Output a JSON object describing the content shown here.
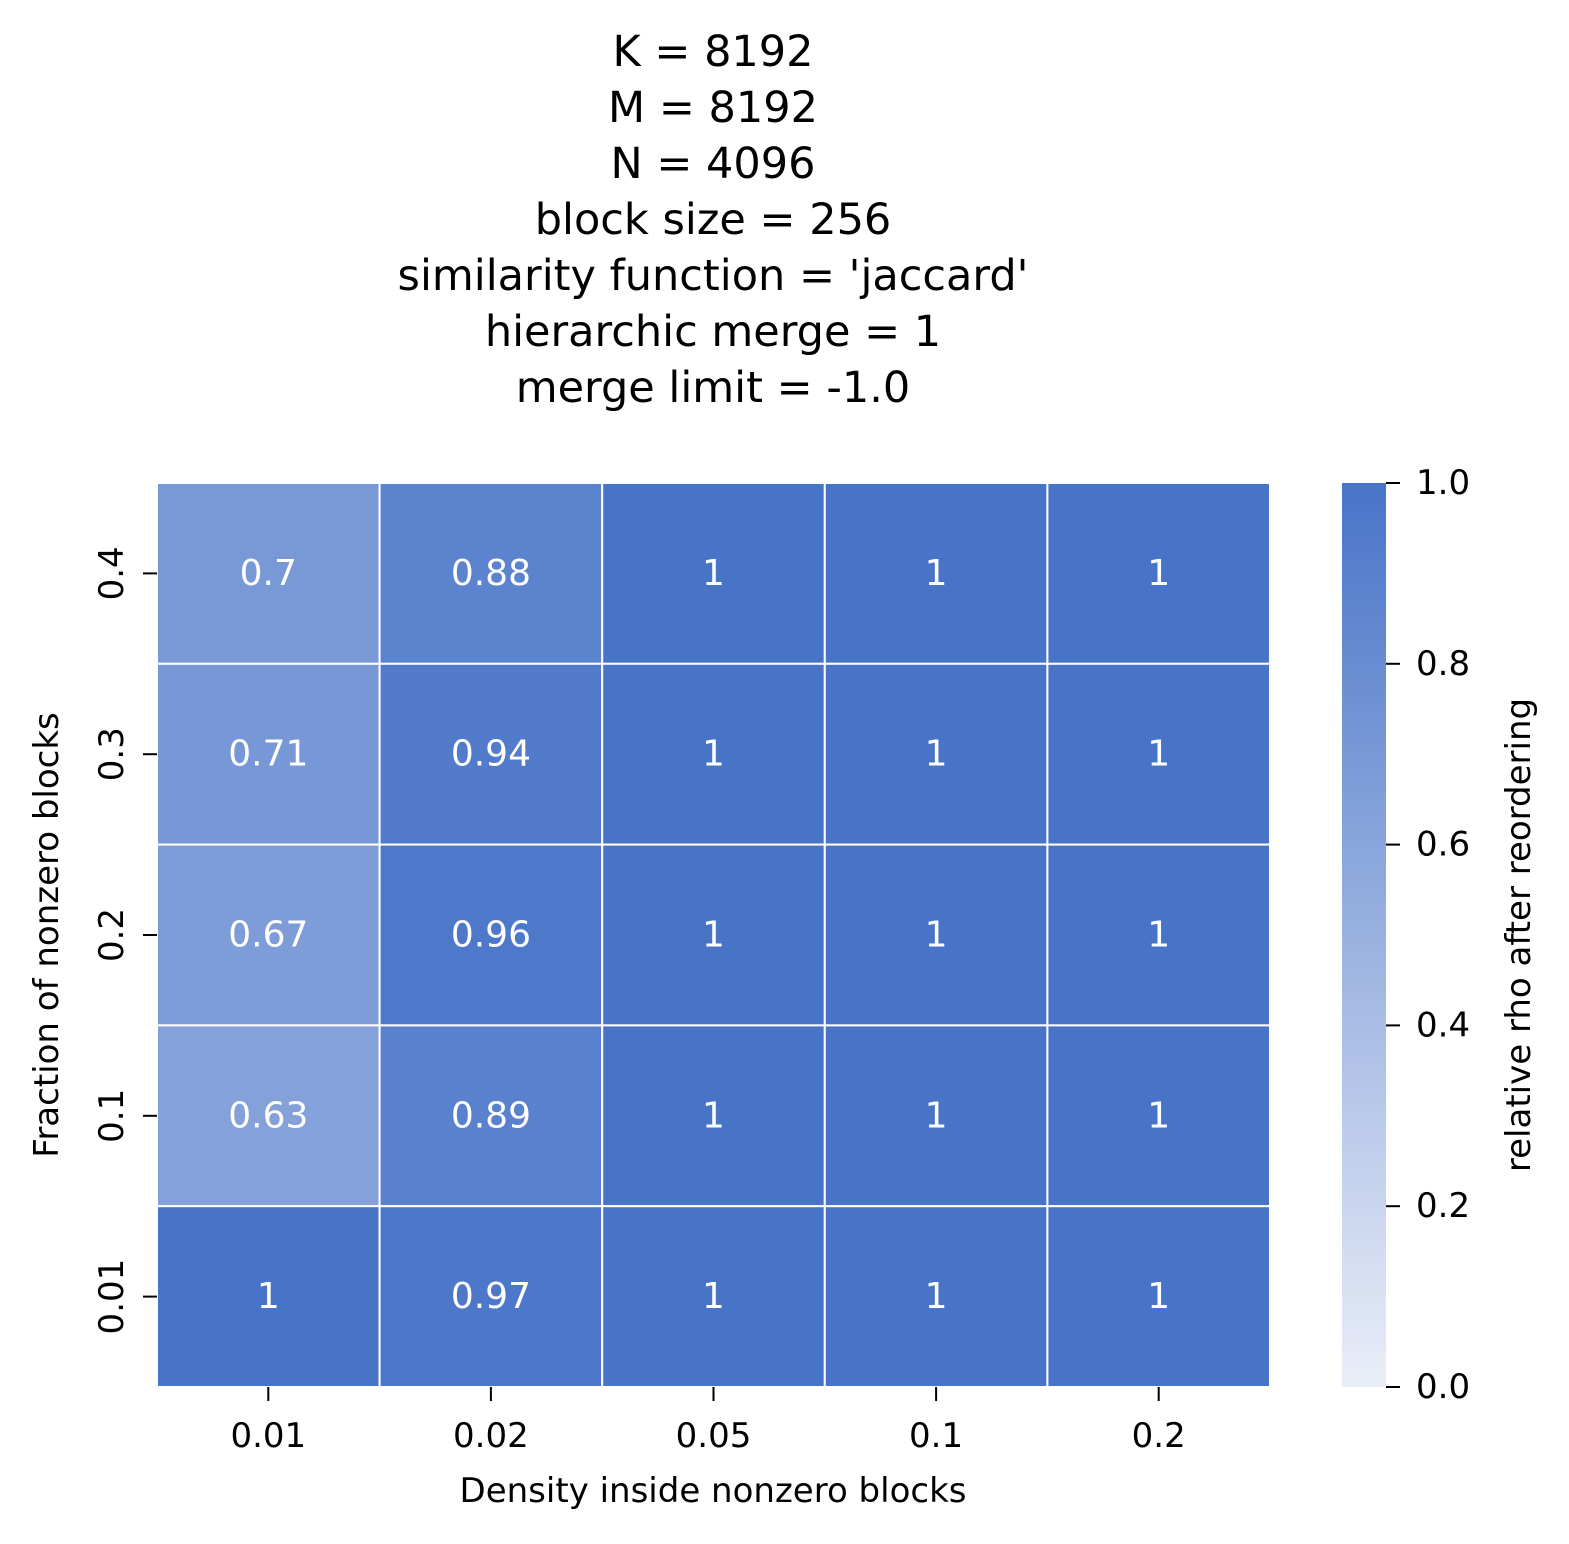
{
  "chart_data": {
    "type": "heatmap",
    "title_lines": [
      "K = 8192",
      "M = 8192",
      "N = 4096",
      "block size = 256",
      "similarity function = 'jaccard'",
      "hierarchic merge = 1",
      "merge limit = -1.0"
    ],
    "xlabel": "Density inside nonzero blocks",
    "ylabel": "Fraction of nonzero blocks",
    "x_categories": [
      "0.01",
      "0.02",
      "0.05",
      "0.1",
      "0.2"
    ],
    "y_categories": [
      "0.4",
      "0.3",
      "0.2",
      "0.1",
      "0.01"
    ],
    "values": [
      [
        0.7,
        0.88,
        1,
        1,
        1
      ],
      [
        0.71,
        0.94,
        1,
        1,
        1
      ],
      [
        0.67,
        0.96,
        1,
        1,
        1
      ],
      [
        0.63,
        0.89,
        1,
        1,
        1
      ],
      [
        1,
        0.97,
        1,
        1,
        1
      ]
    ],
    "annotations": [
      [
        "0.7",
        "0.88",
        "1",
        "1",
        "1"
      ],
      [
        "0.71",
        "0.94",
        "1",
        "1",
        "1"
      ],
      [
        "0.67",
        "0.96",
        "1",
        "1",
        "1"
      ],
      [
        "0.63",
        "0.89",
        "1",
        "1",
        "1"
      ],
      [
        "1",
        "0.97",
        "1",
        "1",
        "1"
      ]
    ],
    "colorbar": {
      "label": "relative rho after reordering",
      "vmin": 0.0,
      "vmax": 1.0,
      "ticks": [
        "0.0",
        "0.2",
        "0.4",
        "0.6",
        "0.8",
        "1.0"
      ],
      "color_low": "#eaeef8",
      "color_high": "#4874c8"
    },
    "cell_annotation_color": "#ffffff",
    "grid_line_color": "#ffffff"
  }
}
